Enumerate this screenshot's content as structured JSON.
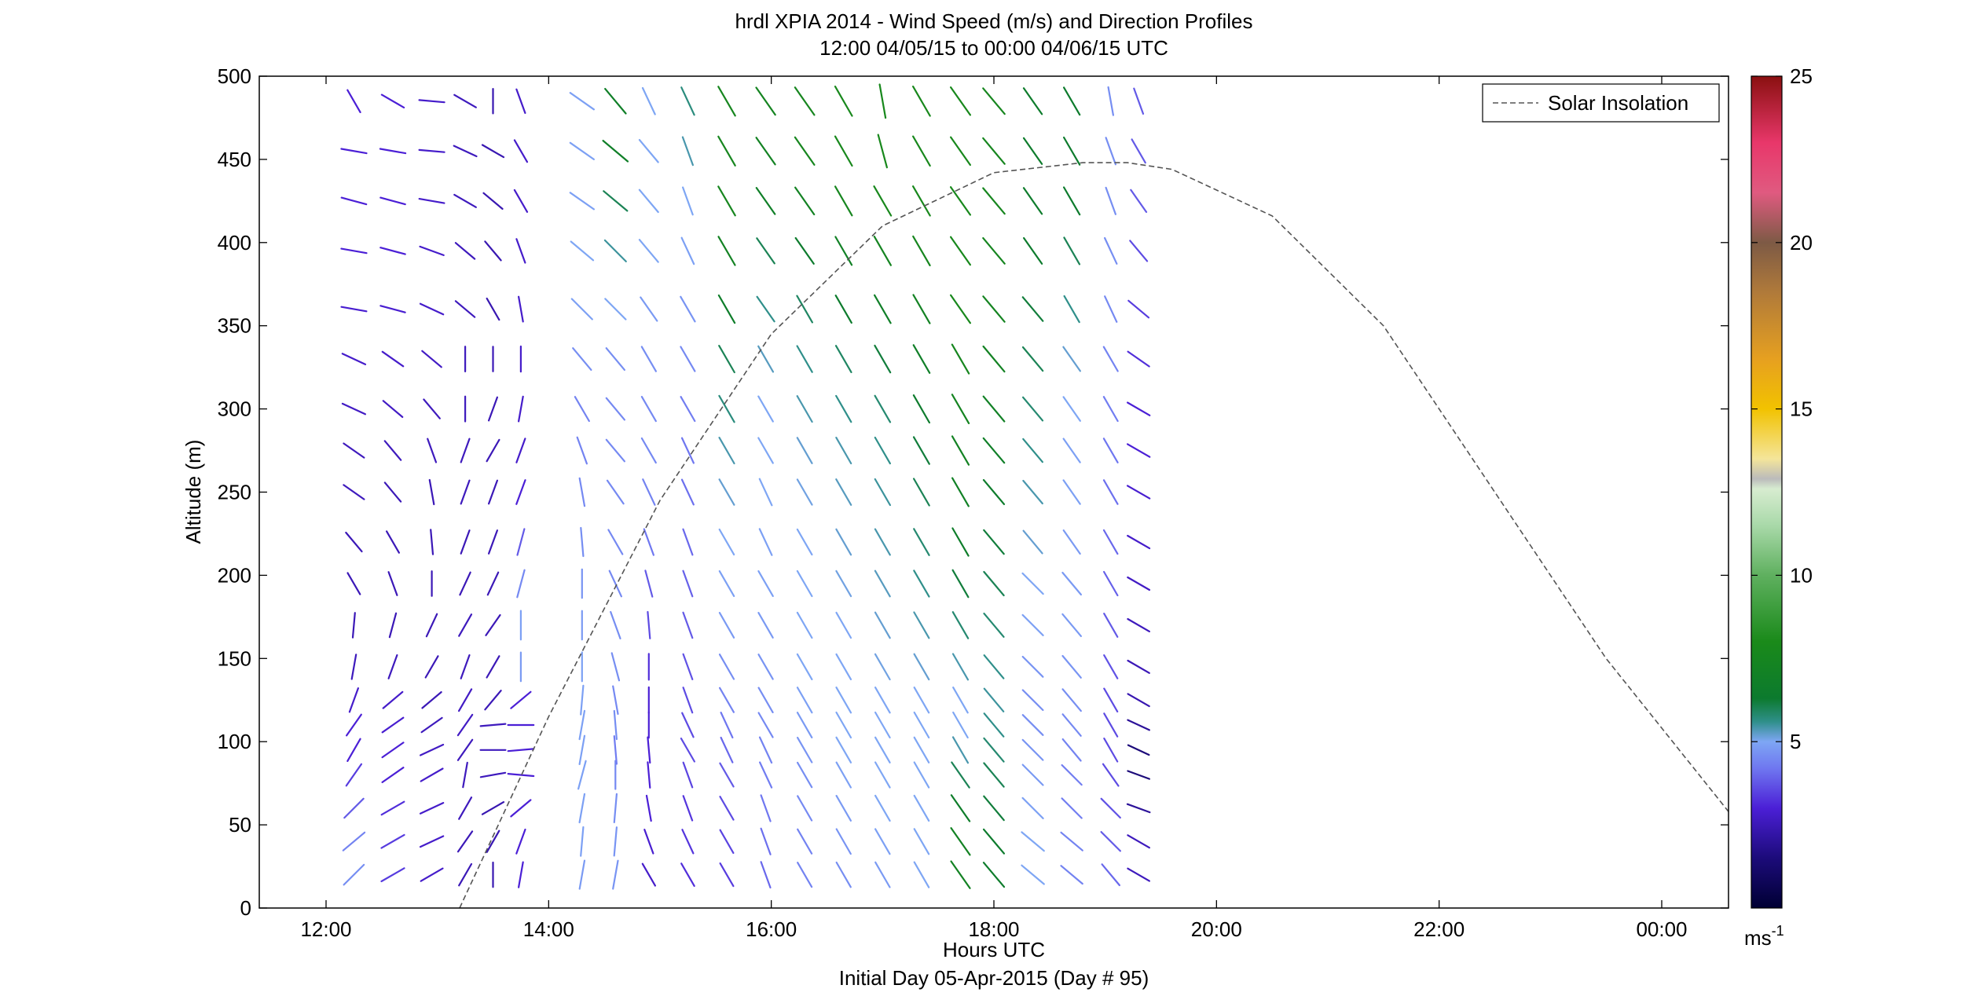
{
  "chart_data": {
    "type": "wind-barb-profile",
    "title": "hrdl XPIA 2014 - Wind Speed (m/s) and Direction Profiles",
    "subtitle": "12:00 04/05/15 to 00:00 04/06/15  UTC",
    "xlabel": "Hours UTC",
    "xlabel2": "Initial Day 05-Apr-2015 (Day # 95)",
    "ylabel": "Altitude (m)",
    "x_range_hours": [
      11.4,
      24.6
    ],
    "ylim": [
      0,
      500
    ],
    "x_ticks": [
      {
        "hour": 12,
        "label": "12:00"
      },
      {
        "hour": 14,
        "label": "14:00"
      },
      {
        "hour": 16,
        "label": "16:00"
      },
      {
        "hour": 18,
        "label": "18:00"
      },
      {
        "hour": 20,
        "label": "20:00"
      },
      {
        "hour": 22,
        "label": "22:00"
      },
      {
        "hour": 24,
        "label": "00:00"
      }
    ],
    "y_ticks": [
      "0",
      "50",
      "100",
      "150",
      "200",
      "250",
      "300",
      "350",
      "400",
      "450",
      "500"
    ],
    "legend": {
      "label": "Solar Insolation",
      "position": "top-right",
      "style": "dashed"
    },
    "colorbar": {
      "range": [
        0,
        25
      ],
      "ticks": [
        "5",
        "10",
        "15",
        "20",
        "25"
      ],
      "tick_values": [
        5,
        10,
        15,
        20,
        25
      ],
      "units": "ms",
      "units_exponent": "-1",
      "stops": [
        {
          "v": 0,
          "c": "#000033"
        },
        {
          "v": 1.5,
          "c": "#1c0b7a"
        },
        {
          "v": 3,
          "c": "#4b1fd6"
        },
        {
          "v": 4.2,
          "c": "#6f77f0"
        },
        {
          "v": 5,
          "c": "#7ea6f4"
        },
        {
          "v": 5.6,
          "c": "#2f8f8a"
        },
        {
          "v": 6.3,
          "c": "#0c7a2e"
        },
        {
          "v": 8,
          "c": "#1a8a1a"
        },
        {
          "v": 10,
          "c": "#5fb05f"
        },
        {
          "v": 11.5,
          "c": "#a9d9a9"
        },
        {
          "v": 12.6,
          "c": "#d7ecd0"
        },
        {
          "v": 12.9,
          "c": "#bbbbbb"
        },
        {
          "v": 13.5,
          "c": "#f4e59a"
        },
        {
          "v": 15,
          "c": "#f2c200"
        },
        {
          "v": 16.5,
          "c": "#e6a020"
        },
        {
          "v": 18.5,
          "c": "#b07a3a"
        },
        {
          "v": 20,
          "c": "#7d5a45"
        },
        {
          "v": 21.5,
          "c": "#e05a80"
        },
        {
          "v": 23,
          "c": "#e8376a"
        },
        {
          "v": 25,
          "c": "#8a1010"
        }
      ]
    },
    "solar_insolation_curve": {
      "hours": [
        13.2,
        14,
        15,
        16,
        17,
        18,
        18.8,
        19.2,
        19.6,
        20.5,
        21.5,
        22.5,
        23.5,
        24.6
      ],
      "altitude": [
        0,
        115,
        245,
        345,
        410,
        442,
        448,
        448,
        444,
        416,
        350,
        250,
        150,
        58
      ]
    },
    "altitudes": [
      20,
      40,
      60,
      80,
      95,
      110,
      125,
      145,
      170,
      195,
      220,
      250,
      275,
      300,
      330,
      360,
      395,
      425,
      455,
      485
    ],
    "profiles": [
      {
        "hour": 12.25,
        "dir": [
          225,
          230,
          225,
          215,
          210,
          215,
          200,
          190,
          185,
          150,
          140,
          125,
          125,
          115,
          115,
          100,
          100,
          105,
          100,
          150
        ],
        "spd": [
          4.6,
          4.4,
          3.8,
          3.4,
          3,
          3,
          2.8,
          2.6,
          2.5,
          2.5,
          2.5,
          2.6,
          2.6,
          2.7,
          2.8,
          2.9,
          3,
          3,
          3,
          3
        ]
      },
      {
        "hour": 12.6,
        "dir": [
          240,
          240,
          240,
          235,
          235,
          235,
          230,
          200,
          195,
          160,
          150,
          140,
          140,
          130,
          125,
          105,
          105,
          105,
          100,
          120
        ],
        "spd": [
          3.4,
          3.4,
          3.2,
          3,
          3,
          2.9,
          2.8,
          2.6,
          2.5,
          2.5,
          2.5,
          2.5,
          2.6,
          2.7,
          2.8,
          2.9,
          3,
          3,
          3,
          3
        ]
      },
      {
        "hour": 12.95,
        "dir": [
          240,
          245,
          245,
          240,
          245,
          235,
          230,
          210,
          205,
          180,
          175,
          170,
          160,
          140,
          130,
          115,
          110,
          100,
          95,
          95
        ],
        "spd": [
          2.8,
          2.8,
          2.8,
          2.8,
          2.7,
          2.6,
          2.5,
          2.5,
          2.5,
          2.5,
          2.5,
          2.5,
          2.6,
          2.6,
          2.7,
          2.8,
          2.8,
          2.8,
          2.8,
          2.8
        ]
      },
      {
        "hour": 13.25,
        "dir": [
          210,
          215,
          210,
          190,
          215,
          215,
          210,
          200,
          210,
          205,
          200,
          200,
          200,
          180,
          180,
          130,
          130,
          120,
          115,
          120
        ],
        "spd": [
          2.5,
          2.5,
          2.6,
          2.6,
          2.6,
          2.7,
          2.7,
          2.6,
          2.6,
          2.5,
          2.5,
          2.6,
          2.6,
          2.6,
          2.6,
          2.6,
          2.6,
          2.6,
          2.6,
          2.6
        ]
      },
      {
        "hour": 13.5,
        "dir": [
          180,
          210,
          240,
          260,
          270,
          265,
          220,
          210,
          215,
          205,
          200,
          200,
          210,
          200,
          180,
          150,
          140,
          130,
          120,
          180
        ],
        "spd": [
          2.4,
          2.4,
          2.4,
          2.6,
          2.6,
          2.6,
          2.5,
          2.5,
          2.5,
          2.5,
          2.5,
          2.5,
          2.5,
          2.5,
          2.5,
          2.4,
          2.4,
          2.4,
          2.4,
          2.4
        ]
      },
      {
        "hour": 13.75,
        "dir": [
          190,
          200,
          230,
          275,
          265,
          270,
          230,
          180,
          180,
          195,
          195,
          200,
          200,
          190,
          180,
          170,
          160,
          150,
          150,
          160
        ],
        "spd": [
          3,
          3,
          3,
          3,
          3,
          3,
          3,
          4.8,
          4.9,
          4.5,
          3.8,
          3,
          2.8,
          2.8,
          2.8,
          2.8,
          2.8,
          2.8,
          2.8,
          2.8
        ]
      },
      {
        "hour": 14.3,
        "dir": [
          190,
          185,
          190,
          195,
          190,
          190,
          185,
          180,
          180,
          180,
          175,
          170,
          160,
          150,
          140,
          135,
          130,
          125,
          125,
          125
        ],
        "spd": [
          4.8,
          4.9,
          4.9,
          4.9,
          4.9,
          4.9,
          4.9,
          4.9,
          4.8,
          4.7,
          4.6,
          4.5,
          4.4,
          4.4,
          4.6,
          4.9,
          5,
          4.9,
          4.9,
          4.9
        ]
      },
      {
        "hour": 14.6,
        "dir": [
          190,
          185,
          185,
          180,
          175,
          175,
          170,
          165,
          160,
          155,
          150,
          145,
          140,
          140,
          140,
          135,
          135,
          130,
          130,
          140
        ],
        "spd": [
          4.7,
          4.7,
          4.6,
          4.5,
          4.3,
          4.6,
          4.5,
          4.6,
          4.6,
          4.5,
          4.5,
          4.5,
          4.5,
          4.5,
          4.6,
          5,
          5.5,
          6,
          6.8,
          6.8
        ]
      },
      {
        "hour": 14.9,
        "dir": [
          150,
          160,
          170,
          175,
          175,
          180,
          180,
          180,
          175,
          165,
          160,
          155,
          150,
          150,
          150,
          145,
          140,
          140,
          140,
          155
        ],
        "spd": [
          2.8,
          2.9,
          3,
          3,
          3,
          3,
          3,
          3.2,
          3.6,
          3.8,
          4.2,
          4.4,
          4.5,
          4.5,
          4.6,
          4.8,
          5,
          5,
          5,
          5
        ]
      },
      {
        "hour": 15.25,
        "dir": [
          150,
          155,
          160,
          160,
          150,
          155,
          160,
          160,
          160,
          160,
          160,
          155,
          155,
          150,
          150,
          150,
          155,
          160,
          160,
          155
        ],
        "spd": [
          3.2,
          3.3,
          3.3,
          3.5,
          3.6,
          3.6,
          3.6,
          3.7,
          3.8,
          3.9,
          4,
          4.1,
          4.2,
          4.3,
          4.5,
          4.7,
          4.9,
          5,
          5.4,
          5.7
        ]
      },
      {
        "hour": 15.6,
        "dir": [
          150,
          150,
          150,
          150,
          155,
          155,
          150,
          150,
          150,
          150,
          150,
          150,
          150,
          150,
          150,
          150,
          150,
          150,
          150,
          150
        ],
        "spd": [
          3.4,
          3.5,
          3.6,
          3.8,
          4,
          4.2,
          4.4,
          4.6,
          4.8,
          4.9,
          5,
          5.2,
          5.4,
          5.7,
          6,
          6.6,
          7.2,
          7.6,
          7.6,
          7.6
        ]
      },
      {
        "hour": 15.95,
        "dir": [
          160,
          160,
          160,
          155,
          155,
          150,
          150,
          150,
          150,
          150,
          155,
          155,
          150,
          150,
          150,
          145,
          145,
          145,
          145,
          145
        ],
        "spd": [
          4,
          4.1,
          4.2,
          4.3,
          4.4,
          4.5,
          4.6,
          4.7,
          4.8,
          4.9,
          4.9,
          5,
          5,
          5,
          5.3,
          5.6,
          6,
          6.8,
          7.2,
          7.4
        ]
      },
      {
        "hour": 16.3,
        "dir": [
          150,
          150,
          150,
          150,
          150,
          150,
          150,
          150,
          150,
          150,
          150,
          150,
          150,
          150,
          150,
          150,
          145,
          145,
          145,
          145
        ],
        "spd": [
          4.4,
          4.4,
          4.5,
          4.6,
          4.7,
          4.8,
          4.9,
          5,
          5,
          5,
          5,
          5.1,
          5.2,
          5.4,
          5.6,
          5.9,
          6.4,
          7.2,
          7.6,
          7.6
        ]
      },
      {
        "hour": 16.65,
        "dir": [
          150,
          150,
          150,
          150,
          150,
          150,
          150,
          150,
          150,
          150,
          150,
          150,
          150,
          150,
          150,
          150,
          150,
          150,
          150,
          150
        ],
        "spd": [
          4.6,
          4.7,
          4.8,
          4.9,
          5,
          5,
          5,
          5,
          5,
          5.1,
          5.2,
          5.3,
          5.4,
          5.6,
          5.9,
          6.4,
          7,
          7.6,
          7.8,
          7.8
        ]
      },
      {
        "hour": 17.0,
        "dir": [
          150,
          150,
          150,
          150,
          150,
          150,
          150,
          150,
          150,
          150,
          150,
          150,
          150,
          150,
          150,
          150,
          150,
          150,
          165,
          170
        ],
        "spd": [
          4.8,
          4.9,
          5,
          5,
          5,
          5,
          5,
          5.1,
          5.2,
          5.3,
          5.4,
          5.5,
          5.6,
          5.8,
          6.2,
          6.8,
          7.4,
          7.8,
          7.8,
          7.8
        ]
      },
      {
        "hour": 17.35,
        "dir": [
          150,
          150,
          150,
          150,
          150,
          150,
          150,
          150,
          150,
          150,
          150,
          150,
          150,
          150,
          150,
          150,
          150,
          150,
          150,
          150
        ],
        "spd": [
          5,
          5,
          5,
          5,
          5,
          5,
          5,
          5.2,
          5.4,
          5.6,
          5.8,
          6,
          6.2,
          6.4,
          6.8,
          7.2,
          7.6,
          7.8,
          7.8,
          7.8
        ]
      },
      {
        "hour": 17.7,
        "dir": [
          145,
          145,
          145,
          145,
          150,
          150,
          150,
          150,
          150,
          150,
          150,
          150,
          150,
          150,
          150,
          145,
          145,
          145,
          145,
          145
        ],
        "spd": [
          7.2,
          7.2,
          6.6,
          6,
          5.4,
          5,
          5,
          5.4,
          5.8,
          6.2,
          6.6,
          7,
          7.2,
          7.4,
          7.6,
          7.8,
          7.8,
          7.8,
          7.8,
          7.8
        ]
      },
      {
        "hour": 18.0,
        "dir": [
          140,
          140,
          140,
          140,
          140,
          140,
          140,
          140,
          140,
          140,
          140,
          140,
          140,
          140,
          140,
          140,
          140,
          140,
          140,
          140
        ],
        "spd": [
          6.5,
          6.4,
          6.2,
          6,
          5.8,
          5.6,
          5.5,
          5.6,
          5.8,
          6,
          6.2,
          6.5,
          6.8,
          7,
          7.2,
          7.4,
          7.5,
          7.6,
          7.6,
          7.6
        ]
      },
      {
        "hour": 18.35,
        "dir": [
          130,
          130,
          135,
          135,
          135,
          135,
          135,
          135,
          135,
          135,
          140,
          140,
          140,
          140,
          140,
          140,
          145,
          145,
          145,
          145
        ],
        "spd": [
          5,
          5,
          4.9,
          4.8,
          4.7,
          4.6,
          4.6,
          4.7,
          4.9,
          5,
          5.2,
          5.4,
          5.6,
          5.8,
          6,
          6.2,
          6.4,
          6.5,
          6.5,
          6.5
        ]
      },
      {
        "hour": 18.7,
        "dir": [
          130,
          130,
          135,
          135,
          140,
          140,
          140,
          140,
          140,
          140,
          145,
          145,
          145,
          145,
          145,
          150,
          150,
          150,
          150,
          150
        ],
        "spd": [
          4.4,
          4.4,
          4.3,
          4.3,
          4.4,
          4.5,
          4.6,
          4.7,
          4.8,
          4.8,
          4.8,
          4.9,
          4.9,
          5,
          5.2,
          5.6,
          6,
          6.4,
          6.4,
          6.4
        ]
      },
      {
        "hour": 19.05,
        "dir": [
          140,
          135,
          135,
          145,
          150,
          150,
          150,
          150,
          150,
          150,
          150,
          150,
          150,
          150,
          150,
          155,
          155,
          160,
          160,
          170
        ],
        "spd": [
          4,
          3.8,
          3.7,
          3.6,
          3.6,
          3.6,
          3.6,
          3.7,
          3.8,
          3.9,
          4,
          4.1,
          4.2,
          4.3,
          4.4,
          4.5,
          4.6,
          4.6,
          4.6,
          4.6
        ]
      },
      {
        "hour": 19.3,
        "dir": [
          120,
          120,
          110,
          110,
          115,
          115,
          120,
          120,
          120,
          120,
          120,
          120,
          120,
          120,
          125,
          130,
          140,
          145,
          150,
          160
        ],
        "spd": [
          2.6,
          2.6,
          2,
          1.5,
          1.5,
          2,
          2.4,
          2.5,
          2.6,
          2.7,
          2.8,
          2.9,
          3,
          3,
          3.2,
          3.4,
          3.6,
          3.8,
          3.8,
          3.8
        ]
      }
    ]
  }
}
